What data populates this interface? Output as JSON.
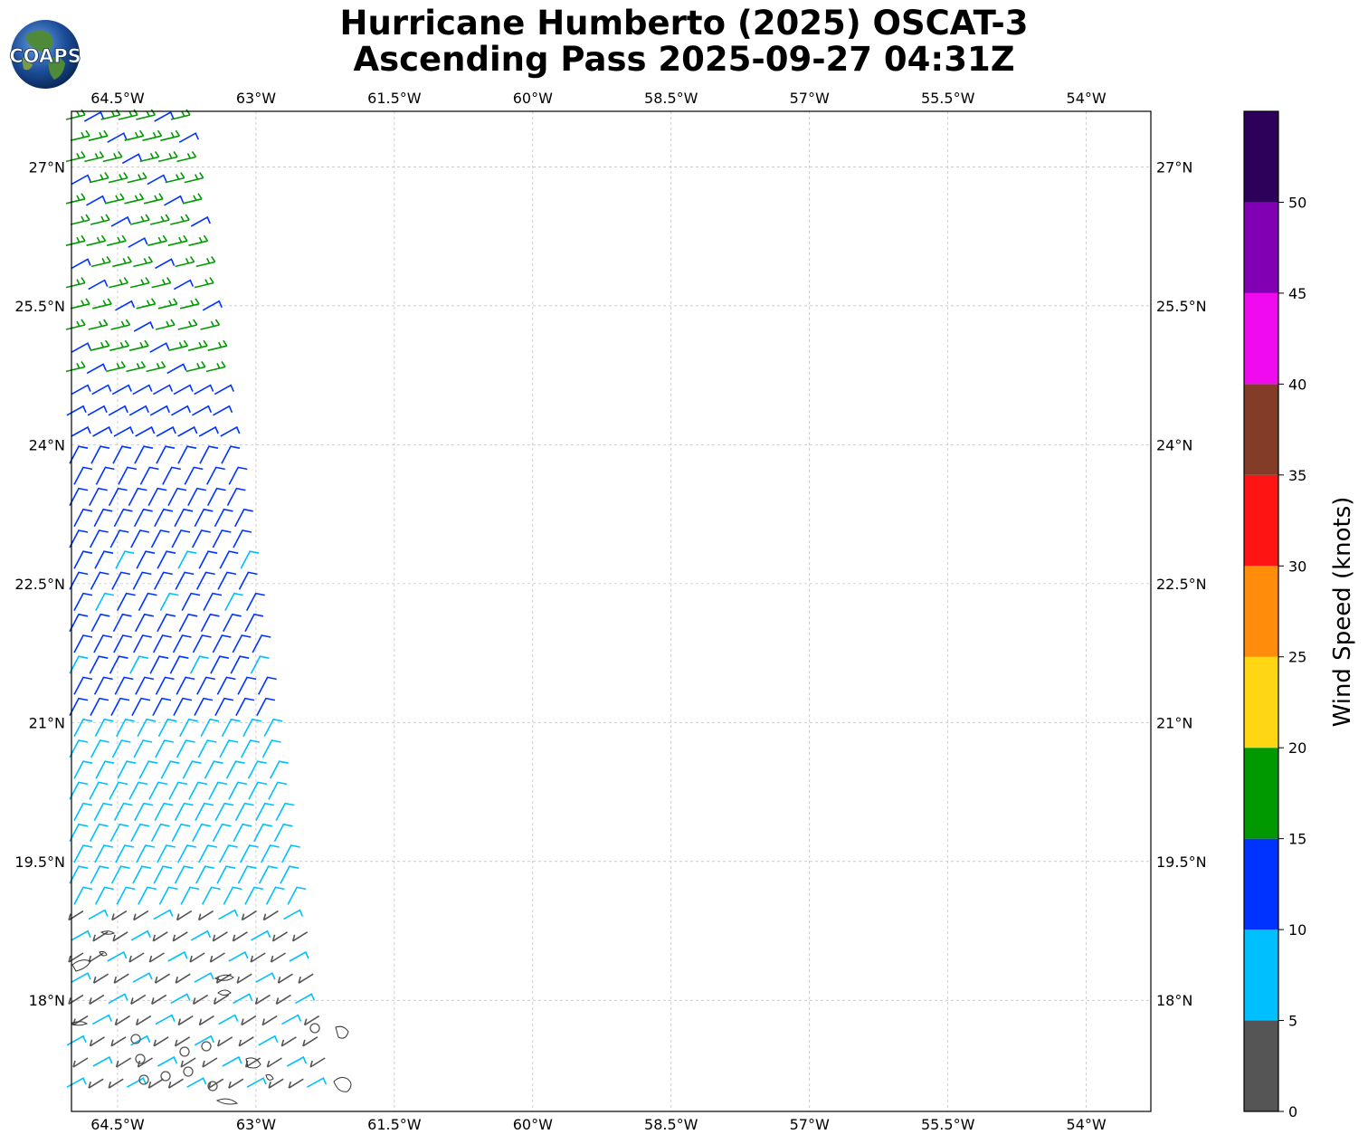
{
  "title": {
    "line1": "Hurricane Humberto (2025) OSCAT-3",
    "line2": "Ascending Pass 2025-09-27 04:31Z"
  },
  "logo": {
    "text": "COAPS",
    "icon": "globe-logo-icon"
  },
  "map": {
    "lon_range": [
      -65.0,
      -53.3
    ],
    "lat_range": [
      16.8,
      27.6
    ],
    "lon_ticks": [
      "64.5°W",
      "63°W",
      "61.5°W",
      "60°W",
      "58.5°W",
      "57°W",
      "55.5°W",
      "54°W"
    ],
    "lat_ticks": [
      "27°N",
      "25.5°N",
      "24°N",
      "22.5°N",
      "21°N",
      "19.5°N",
      "18°N"
    ],
    "gridlines": true,
    "wind_barb_colors": [
      "#555555",
      "#00bfff",
      "#0033ff",
      "#009900"
    ]
  },
  "colorbar": {
    "title": "Wind Speed (knots)",
    "bins": [
      {
        "range": [
          0,
          5
        ],
        "color": "#555555"
      },
      {
        "range": [
          5,
          10
        ],
        "color": "#00bfff"
      },
      {
        "range": [
          10,
          15
        ],
        "color": "#0033ff"
      },
      {
        "range": [
          15,
          20
        ],
        "color": "#009900"
      },
      {
        "range": [
          20,
          25
        ],
        "color": "#ffd614"
      },
      {
        "range": [
          25,
          30
        ],
        "color": "#ff8c0a"
      },
      {
        "range": [
          30,
          35
        ],
        "color": "#ff1414"
      },
      {
        "range": [
          35,
          40
        ],
        "color": "#823c28"
      },
      {
        "range": [
          40,
          45
        ],
        "color": "#f00af0"
      },
      {
        "range": [
          45,
          50
        ],
        "color": "#8200b4"
      },
      {
        "range": [
          50,
          55
        ],
        "color": "#2d005a"
      }
    ],
    "tick_labels": [
      "0",
      "5",
      "10",
      "15",
      "20",
      "25",
      "30",
      "35",
      "40",
      "45",
      "50"
    ]
  }
}
